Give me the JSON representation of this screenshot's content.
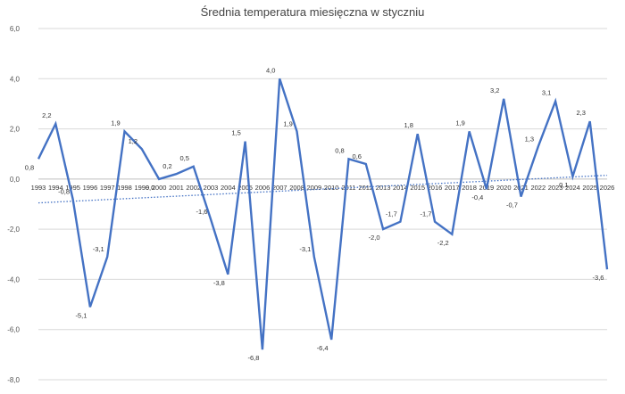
{
  "chart_data": {
    "type": "line",
    "title": "Średnia temperatura miesięczna w styczniu",
    "xlabel": "",
    "ylabel": "",
    "ylim": [
      -8,
      6
    ],
    "y_tick_labels": [
      "-8,0",
      "-6,0",
      "-4,0",
      "-2,0",
      "0,0",
      "2,0",
      "4,0",
      "6,0"
    ],
    "grid": "horizontal",
    "legend": "none",
    "categories": [
      "1993",
      "1994",
      "1995",
      "1996",
      "1997",
      "1998",
      "1999",
      "2000",
      "2001",
      "2002",
      "2003",
      "2004",
      "2005",
      "2006",
      "2007",
      "2008",
      "2009",
      "2010",
      "2011",
      "2012",
      "2013",
      "2014",
      "2015",
      "2016",
      "2017",
      "2018",
      "2019",
      "2020",
      "2021",
      "2022",
      "2023",
      "2024",
      "2025",
      "2026"
    ],
    "series": [
      {
        "values": [
          0.8,
          2.2,
          -0.8,
          -5.1,
          -3.1,
          1.9,
          1.2,
          0.0,
          0.2,
          0.5,
          -1.6,
          -3.8,
          1.5,
          -6.8,
          4.0,
          1.9,
          -3.1,
          -6.4,
          0.8,
          0.6,
          -2.0,
          -1.7,
          1.8,
          -1.7,
          -2.2,
          1.9,
          -0.4,
          3.2,
          -0.7,
          1.3,
          3.1,
          0.1,
          2.3,
          -3.6
        ],
        "data_labels": [
          "0,8",
          "2,2",
          "-0,8",
          "-5,1",
          "-3,1",
          "1,9",
          "1,2",
          "0,0",
          "0,2",
          "0,5",
          "-1,6",
          "-3,8",
          "1,5",
          "-6,8",
          "4,0",
          "1,9",
          "-3,1",
          "-6,4",
          "0,8",
          "0,6",
          "-2,0",
          "-1,7",
          "1,8",
          "-1,7",
          "-2,2",
          "1,9",
          "-0,4",
          "3,2",
          "-0,7",
          "1,3",
          "3,1",
          "0,1",
          "2,3",
          "-3,6"
        ]
      }
    ],
    "trendline": {
      "style": "dotted",
      "start": -0.95,
      "end": 0.15
    },
    "colors": {
      "line": "#4472c4",
      "grid": "#d9d9d9",
      "axis": "#bfbfbf"
    }
  }
}
